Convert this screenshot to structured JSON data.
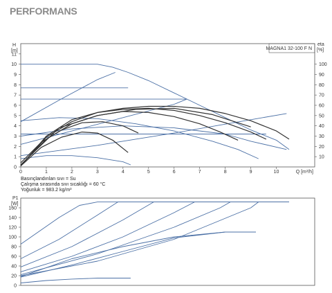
{
  "page": {
    "title": "PERFORMANS"
  },
  "chart_data": [
    {
      "type": "line",
      "title": "",
      "model_label": "MAGNA1 32-100 F N",
      "ylabel_top": "H",
      "ylabel_unit": "[m]",
      "xlabel": "Q [m³/h]",
      "eta_label_top": "eta",
      "eta_label_unit": "[%]",
      "xlim": [
        0,
        11.5
      ],
      "ylim": [
        0,
        12
      ],
      "eta_lim": [
        0,
        120
      ],
      "x_ticks": [
        "0",
        "1",
        "2",
        "3",
        "4",
        "5",
        "6",
        "7",
        "8",
        "9",
        "10"
      ],
      "y_ticks": [
        "0",
        "1",
        "2",
        "3",
        "4",
        "5",
        "6",
        "7",
        "8",
        "9",
        "10",
        "11"
      ],
      "eta_ticks": [
        "10",
        "20",
        "30",
        "40",
        "50",
        "60",
        "70",
        "80",
        "90",
        "100"
      ],
      "grid": false,
      "notes": [
        "Basınçlandırılan sıvı = Su",
        "Çalışma sırasında sıvı sıcaklığı = 60 °C",
        "Yoğunluk = 983.2 kg/m³"
      ],
      "series": [
        {
          "color": "#4a6fa5",
          "x": [
            0,
            3.0,
            3.6,
            4.2,
            5.0,
            6.0,
            7.0,
            8.0,
            9.0,
            10.0,
            10.5
          ],
          "y": [
            10.0,
            10.0,
            9.7,
            9.2,
            8.4,
            7.2,
            6.0,
            4.8,
            3.6,
            2.6,
            1.7
          ]
        },
        {
          "color": "#4a6fa5",
          "x": [
            0,
            3.7,
            4.2
          ],
          "y": [
            7.7,
            7.7,
            7.7
          ]
        },
        {
          "color": "#4a6fa5",
          "x": [
            0,
            6.0,
            6.5
          ],
          "y": [
            6.6,
            6.6,
            6.6
          ]
        },
        {
          "color": "#4a6fa5",
          "x": [
            0,
            9.6
          ],
          "y": [
            3.2,
            3.2
          ]
        },
        {
          "color": "#4a6fa5",
          "x": [
            0,
            1.5,
            3.0,
            3.7
          ],
          "y": [
            4.4,
            6.5,
            8.5,
            9.2
          ]
        },
        {
          "color": "#4a6fa5",
          "x": [
            0,
            2.0,
            4.0,
            6.0,
            6.5
          ],
          "y": [
            2.2,
            3.5,
            4.8,
            6.1,
            6.6
          ]
        },
        {
          "color": "#4a6fa5",
          "x": [
            0,
            3.0,
            6.0,
            9.0,
            10.4
          ],
          "y": [
            1.1,
            2.1,
            3.3,
            4.6,
            5.2
          ]
        },
        {
          "color": "#4a6fa5",
          "x": [
            0,
            1.0,
            2.0,
            3.0,
            4.0,
            4.3
          ],
          "y": [
            0.8,
            1.1,
            1.1,
            0.9,
            0.5,
            0.2
          ]
        },
        {
          "color": "#4a6fa5",
          "x": [
            0,
            1.5,
            3.0,
            4.5,
            6.0,
            7.5,
            8.5,
            9.3
          ],
          "y": [
            4.5,
            4.8,
            4.7,
            4.2,
            3.5,
            2.5,
            1.7,
            0.8
          ]
        },
        {
          "color": "#4a6fa5",
          "x": [
            0,
            2.0,
            4.0,
            6.0,
            8.0,
            9.0,
            10.4
          ],
          "y": [
            3.0,
            3.7,
            4.0,
            3.8,
            3.2,
            2.5,
            1.7
          ]
        },
        {
          "color": "#333333",
          "x": [
            0,
            0.8,
            1.6,
            2.4,
            3.2,
            4.0,
            4.6
          ],
          "y": [
            0.4,
            2.4,
            3.6,
            4.3,
            4.4,
            4.0,
            3.3
          ]
        },
        {
          "color": "#333333",
          "x": [
            0,
            1.0,
            2.0,
            3.0,
            4.0,
            5.0,
            6.0,
            7.0,
            7.8,
            8.5
          ],
          "y": [
            0.2,
            2.7,
            4.2,
            5.0,
            5.4,
            5.3,
            4.9,
            4.2,
            3.4,
            2.6
          ]
        },
        {
          "color": "#333333",
          "x": [
            0,
            1.0,
            2.0,
            3.0,
            4.0,
            5.0,
            6.0,
            7.0,
            8.0,
            9.0,
            9.6
          ],
          "y": [
            0.1,
            2.9,
            4.4,
            5.3,
            5.6,
            5.7,
            5.5,
            5.0,
            4.3,
            3.4,
            2.7
          ]
        },
        {
          "color": "#333333",
          "x": [
            0,
            1.0,
            2.0,
            3.0,
            4.0,
            5.0,
            6.0,
            7.0,
            8.0,
            9.0,
            10.0,
            10.5
          ],
          "y": [
            0.1,
            3.0,
            4.6,
            5.3,
            5.7,
            5.9,
            5.9,
            5.7,
            5.2,
            4.5,
            3.5,
            2.7
          ]
        },
        {
          "color": "#333333",
          "x": [
            0,
            0.8,
            1.6,
            2.4,
            3.0,
            3.6,
            4.2
          ],
          "y": [
            0.1,
            1.9,
            2.9,
            3.4,
            3.3,
            2.6,
            1.4
          ]
        },
        {
          "color": "#333333",
          "x": [
            0,
            1.5,
            3.0,
            4.5,
            6.0,
            7.5,
            9.0
          ],
          "y": [
            0.2,
            3.8,
            5.0,
            5.6,
            5.7,
            5.1,
            3.9
          ]
        }
      ]
    },
    {
      "type": "line",
      "title": "",
      "ylabel_top": "P1",
      "ylabel_unit": "[W]",
      "xlim": [
        0,
        11.5
      ],
      "ylim": [
        0,
        180
      ],
      "y_ticks": [
        "0",
        "20",
        "40",
        "60",
        "80",
        "100",
        "120",
        "140",
        "160"
      ],
      "grid": false,
      "series": [
        {
          "color": "#4a6fa5",
          "x": [
            0,
            1.5,
            2.3,
            3.0,
            10.5
          ],
          "y": [
            85,
            140,
            165,
            172,
            172
          ]
        },
        {
          "color": "#4a6fa5",
          "x": [
            0,
            1.5,
            3.0,
            3.8,
            10.5
          ],
          "y": [
            55,
            95,
            145,
            172,
            172
          ]
        },
        {
          "color": "#4a6fa5",
          "x": [
            0,
            2.0,
            4.0,
            5.2,
            10.5
          ],
          "y": [
            38,
            80,
            135,
            172,
            172
          ]
        },
        {
          "color": "#4a6fa5",
          "x": [
            0,
            2.0,
            4.0,
            6.0,
            6.8,
            10.5
          ],
          "y": [
            28,
            60,
            100,
            150,
            172,
            172
          ]
        },
        {
          "color": "#4a6fa5",
          "x": [
            0,
            3.0,
            6.0,
            7.8,
            8.2,
            10.5
          ],
          "y": [
            22,
            65,
            120,
            160,
            172,
            172
          ]
        },
        {
          "color": "#4a6fa5",
          "x": [
            0,
            3.0,
            6.0,
            9.0,
            9.3,
            10.5
          ],
          "y": [
            20,
            50,
            95,
            160,
            172,
            172
          ]
        },
        {
          "color": "#4a6fa5",
          "x": [
            0,
            2.0,
            4.0,
            6.0,
            8.0,
            9.2
          ],
          "y": [
            17,
            42,
            70,
            98,
            110,
            110
          ]
        },
        {
          "color": "#4a6fa5",
          "x": [
            0,
            1.0,
            2.0,
            3.0,
            4.0,
            4.3
          ],
          "y": [
            5,
            10,
            13,
            15,
            15,
            15
          ]
        },
        {
          "color": "#4a6fa5",
          "x": [
            0,
            2.0,
            4.0,
            6.0,
            8.0,
            9.2
          ],
          "y": [
            18,
            55,
            80,
            100,
            110,
            110
          ]
        }
      ]
    }
  ]
}
